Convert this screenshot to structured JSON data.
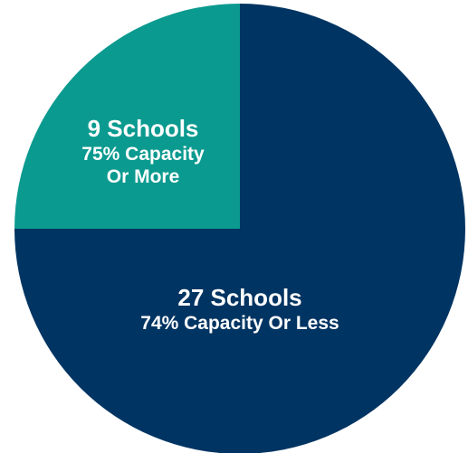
{
  "chart_data": {
    "type": "pie",
    "categories": [
      "74% Capacity Or Less",
      "75% Capacity Or More"
    ],
    "values": [
      27,
      9
    ],
    "value_labels": [
      "27 Schools",
      "9 Schools"
    ],
    "colors": [
      "#003462",
      "#0b9a8f"
    ]
  }
}
